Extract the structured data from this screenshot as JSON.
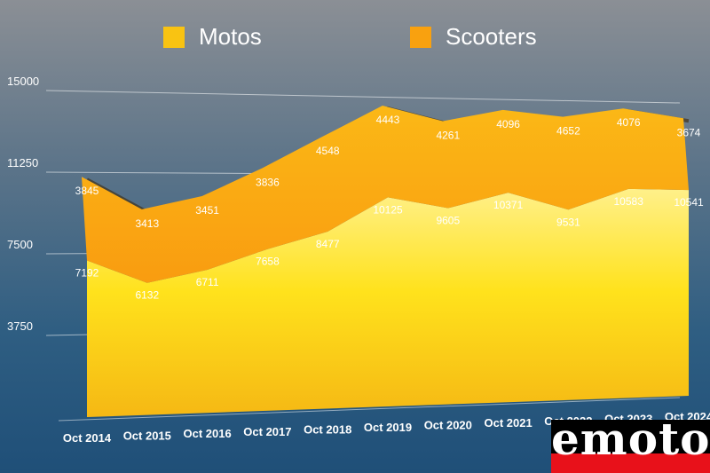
{
  "legend": {
    "motos": "Motos",
    "scooters": "Scooters"
  },
  "colors": {
    "motos": "#f9c312",
    "scooters": "#f9a10f"
  },
  "logo": {
    "text": "emoto",
    "icon": "emoto-logo"
  },
  "chart_data": {
    "type": "area",
    "stacked": true,
    "categories": [
      "Oct 2014",
      "Oct 2015",
      "Oct 2016",
      "Oct 2017",
      "Oct 2018",
      "Oct 2019",
      "Oct 2020",
      "Oct 2021",
      "Oct 2022",
      "Oct 2023",
      "Oct 2024"
    ],
    "series": [
      {
        "name": "Motos",
        "values": [
          7192,
          6132,
          6711,
          7658,
          8477,
          10125,
          9605,
          10371,
          9531,
          10583,
          10541
        ]
      },
      {
        "name": "Scooters",
        "values": [
          3845,
          3413,
          3451,
          3836,
          4548,
          4443,
          4261,
          4096,
          4652,
          4076,
          3674
        ]
      }
    ],
    "yticks": [
      "3750",
      "7500",
      "11250",
      "15000"
    ],
    "ylim": [
      0,
      15000
    ],
    "grid": true,
    "legend_position": "top"
  }
}
